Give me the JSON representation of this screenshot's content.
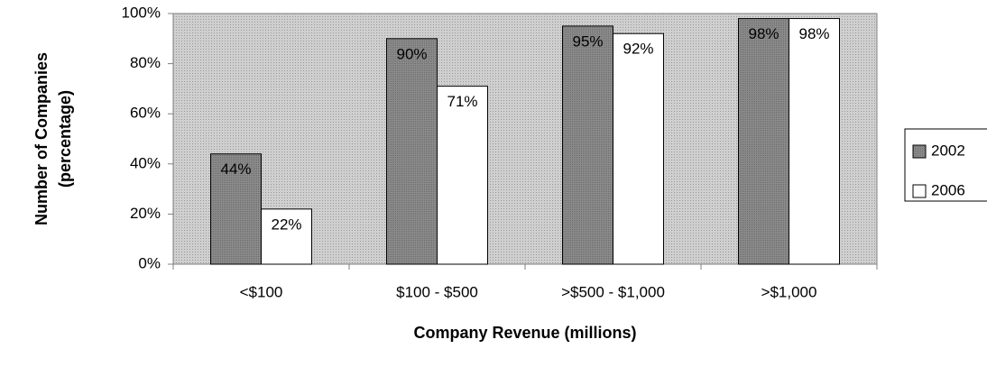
{
  "chart_data": {
    "type": "bar",
    "ylabel": [
      "Number of Companies",
      "(percentage)"
    ],
    "xlabel": "Company Revenue (millions)",
    "categories": [
      "<$100",
      "$100 - $500",
      ">$500 - $1,000",
      ">$1,000"
    ],
    "series": [
      {
        "name": "2002",
        "color": "#8c8c8c",
        "values": [
          44,
          90,
          95,
          98
        ],
        "value_labels": [
          "44%",
          "90%",
          "95%",
          "98%"
        ]
      },
      {
        "name": "2006",
        "color": "#ffffff",
        "values": [
          22,
          71,
          92,
          98
        ],
        "value_labels": [
          "22%",
          "71%",
          "92%",
          "98%"
        ]
      }
    ],
    "ylim": [
      0,
      100
    ],
    "yticks": [
      {
        "value": 0,
        "label": "0%"
      },
      {
        "value": 20,
        "label": "20%"
      },
      {
        "value": 40,
        "label": "40%"
      },
      {
        "value": 60,
        "label": "60%"
      },
      {
        "value": 80,
        "label": "80%"
      },
      {
        "value": 100,
        "label": "100%"
      }
    ],
    "grid": false,
    "legend": "right",
    "plot_background": "#c4c4c4"
  }
}
